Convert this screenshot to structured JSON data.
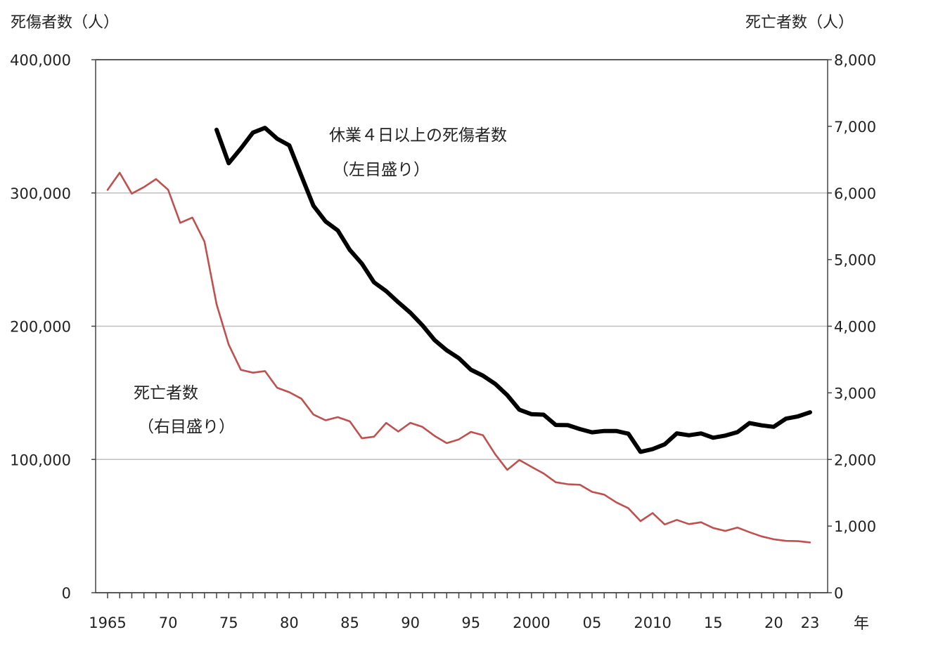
{
  "chart_data": {
    "type": "line",
    "title": "",
    "xlabel": "年",
    "ylabel_left": "死傷者数（人）",
    "ylabel_right": "死亡者数（人）",
    "ylim_left": [
      0,
      400000
    ],
    "ylim_right": [
      0,
      8000
    ],
    "yticks_left": [
      "0",
      "100,000",
      "200,000",
      "300,000",
      "400,000"
    ],
    "yticks_right": [
      "0",
      "1,000",
      "2,000",
      "3,000",
      "4,000",
      "5,000",
      "6,000",
      "7,000",
      "8,000"
    ],
    "xlim": [
      1965,
      2023
    ],
    "xtick_labels": [
      {
        "year": 1965,
        "label": "1965"
      },
      {
        "year": 1970,
        "label": "70"
      },
      {
        "year": 1975,
        "label": "75"
      },
      {
        "year": 1980,
        "label": "80"
      },
      {
        "year": 1985,
        "label": "85"
      },
      {
        "year": 1990,
        "label": "90"
      },
      {
        "year": 1995,
        "label": "95"
      },
      {
        "year": 2000,
        "label": "2000"
      },
      {
        "year": 2005,
        "label": "05"
      },
      {
        "year": 2010,
        "label": "2010"
      },
      {
        "year": 2015,
        "label": "15"
      },
      {
        "year": 2020,
        "label": "20"
      },
      {
        "year": 2023,
        "label": "23"
      }
    ],
    "grid": true,
    "series": [
      {
        "name": "休業４日以上の死傷者数",
        "name_sub": "（左目盛り）",
        "axis": "left",
        "color": "#000000",
        "x": [
          1974,
          1975,
          1976,
          1977,
          1978,
          1979,
          1980,
          1981,
          1982,
          1983,
          1984,
          1985,
          1986,
          1987,
          1988,
          1989,
          1990,
          1991,
          1992,
          1993,
          1994,
          1995,
          1996,
          1997,
          1998,
          1999,
          2000,
          2001,
          2002,
          2003,
          2004,
          2005,
          2006,
          2007,
          2008,
          2009,
          2010,
          2011,
          2012,
          2013,
          2014,
          2015,
          2016,
          2017,
          2018,
          2019,
          2020,
          2021,
          2022,
          2023
        ],
        "values": [
          347407,
          322322,
          333311,
          345293,
          348826,
          340731,
          335706,
          312844,
          290339,
          278623,
          271884,
          257240,
          246891,
          232953,
          226318,
          217964,
          210108,
          200633,
          189589,
          181900,
          176047,
          167316,
          162862,
          156726,
          148248,
          137316,
          133948,
          133598,
          125918,
          125750,
          122804,
          120354,
          121378,
          121356,
          119291,
          105718,
          107759,
          111349,
          119576,
          118157,
          119535,
          116311,
          117910,
          120460,
          127329,
          125611,
          124500,
          130586,
          132355,
          135371
        ]
      },
      {
        "name": "死亡者数",
        "name_sub": "（右目盛り）",
        "axis": "right",
        "color": "#c0504d",
        "x": [
          1965,
          1966,
          1967,
          1968,
          1969,
          1970,
          1971,
          1972,
          1973,
          1974,
          1975,
          1976,
          1977,
          1978,
          1979,
          1980,
          1981,
          1982,
          1983,
          1984,
          1985,
          1986,
          1987,
          1988,
          1989,
          1990,
          1991,
          1992,
          1993,
          1994,
          1995,
          1996,
          1997,
          1998,
          1999,
          2000,
          2001,
          2002,
          2003,
          2004,
          2005,
          2006,
          2007,
          2008,
          2009,
          2010,
          2011,
          2012,
          2013,
          2014,
          2015,
          2016,
          2017,
          2018,
          2019,
          2020,
          2021,
          2022,
          2023
        ],
        "values": [
          6046,
          6303,
          5990,
          6088,
          6208,
          6048,
          5552,
          5631,
          5269,
          4330,
          3725,
          3345,
          3302,
          3326,
          3077,
          3009,
          2912,
          2674,
          2588,
          2635,
          2572,
          2318,
          2342,
          2549,
          2419,
          2550,
          2489,
          2354,
          2245,
          2301,
          2414,
          2363,
          2078,
          1844,
          1992,
          1889,
          1790,
          1658,
          1628,
          1620,
          1514,
          1472,
          1357,
          1268,
          1075,
          1195,
          1024,
          1093,
          1030,
          1057,
          972,
          928,
          978,
          909,
          845,
          802,
          778,
          774,
          755
        ]
      }
    ]
  }
}
